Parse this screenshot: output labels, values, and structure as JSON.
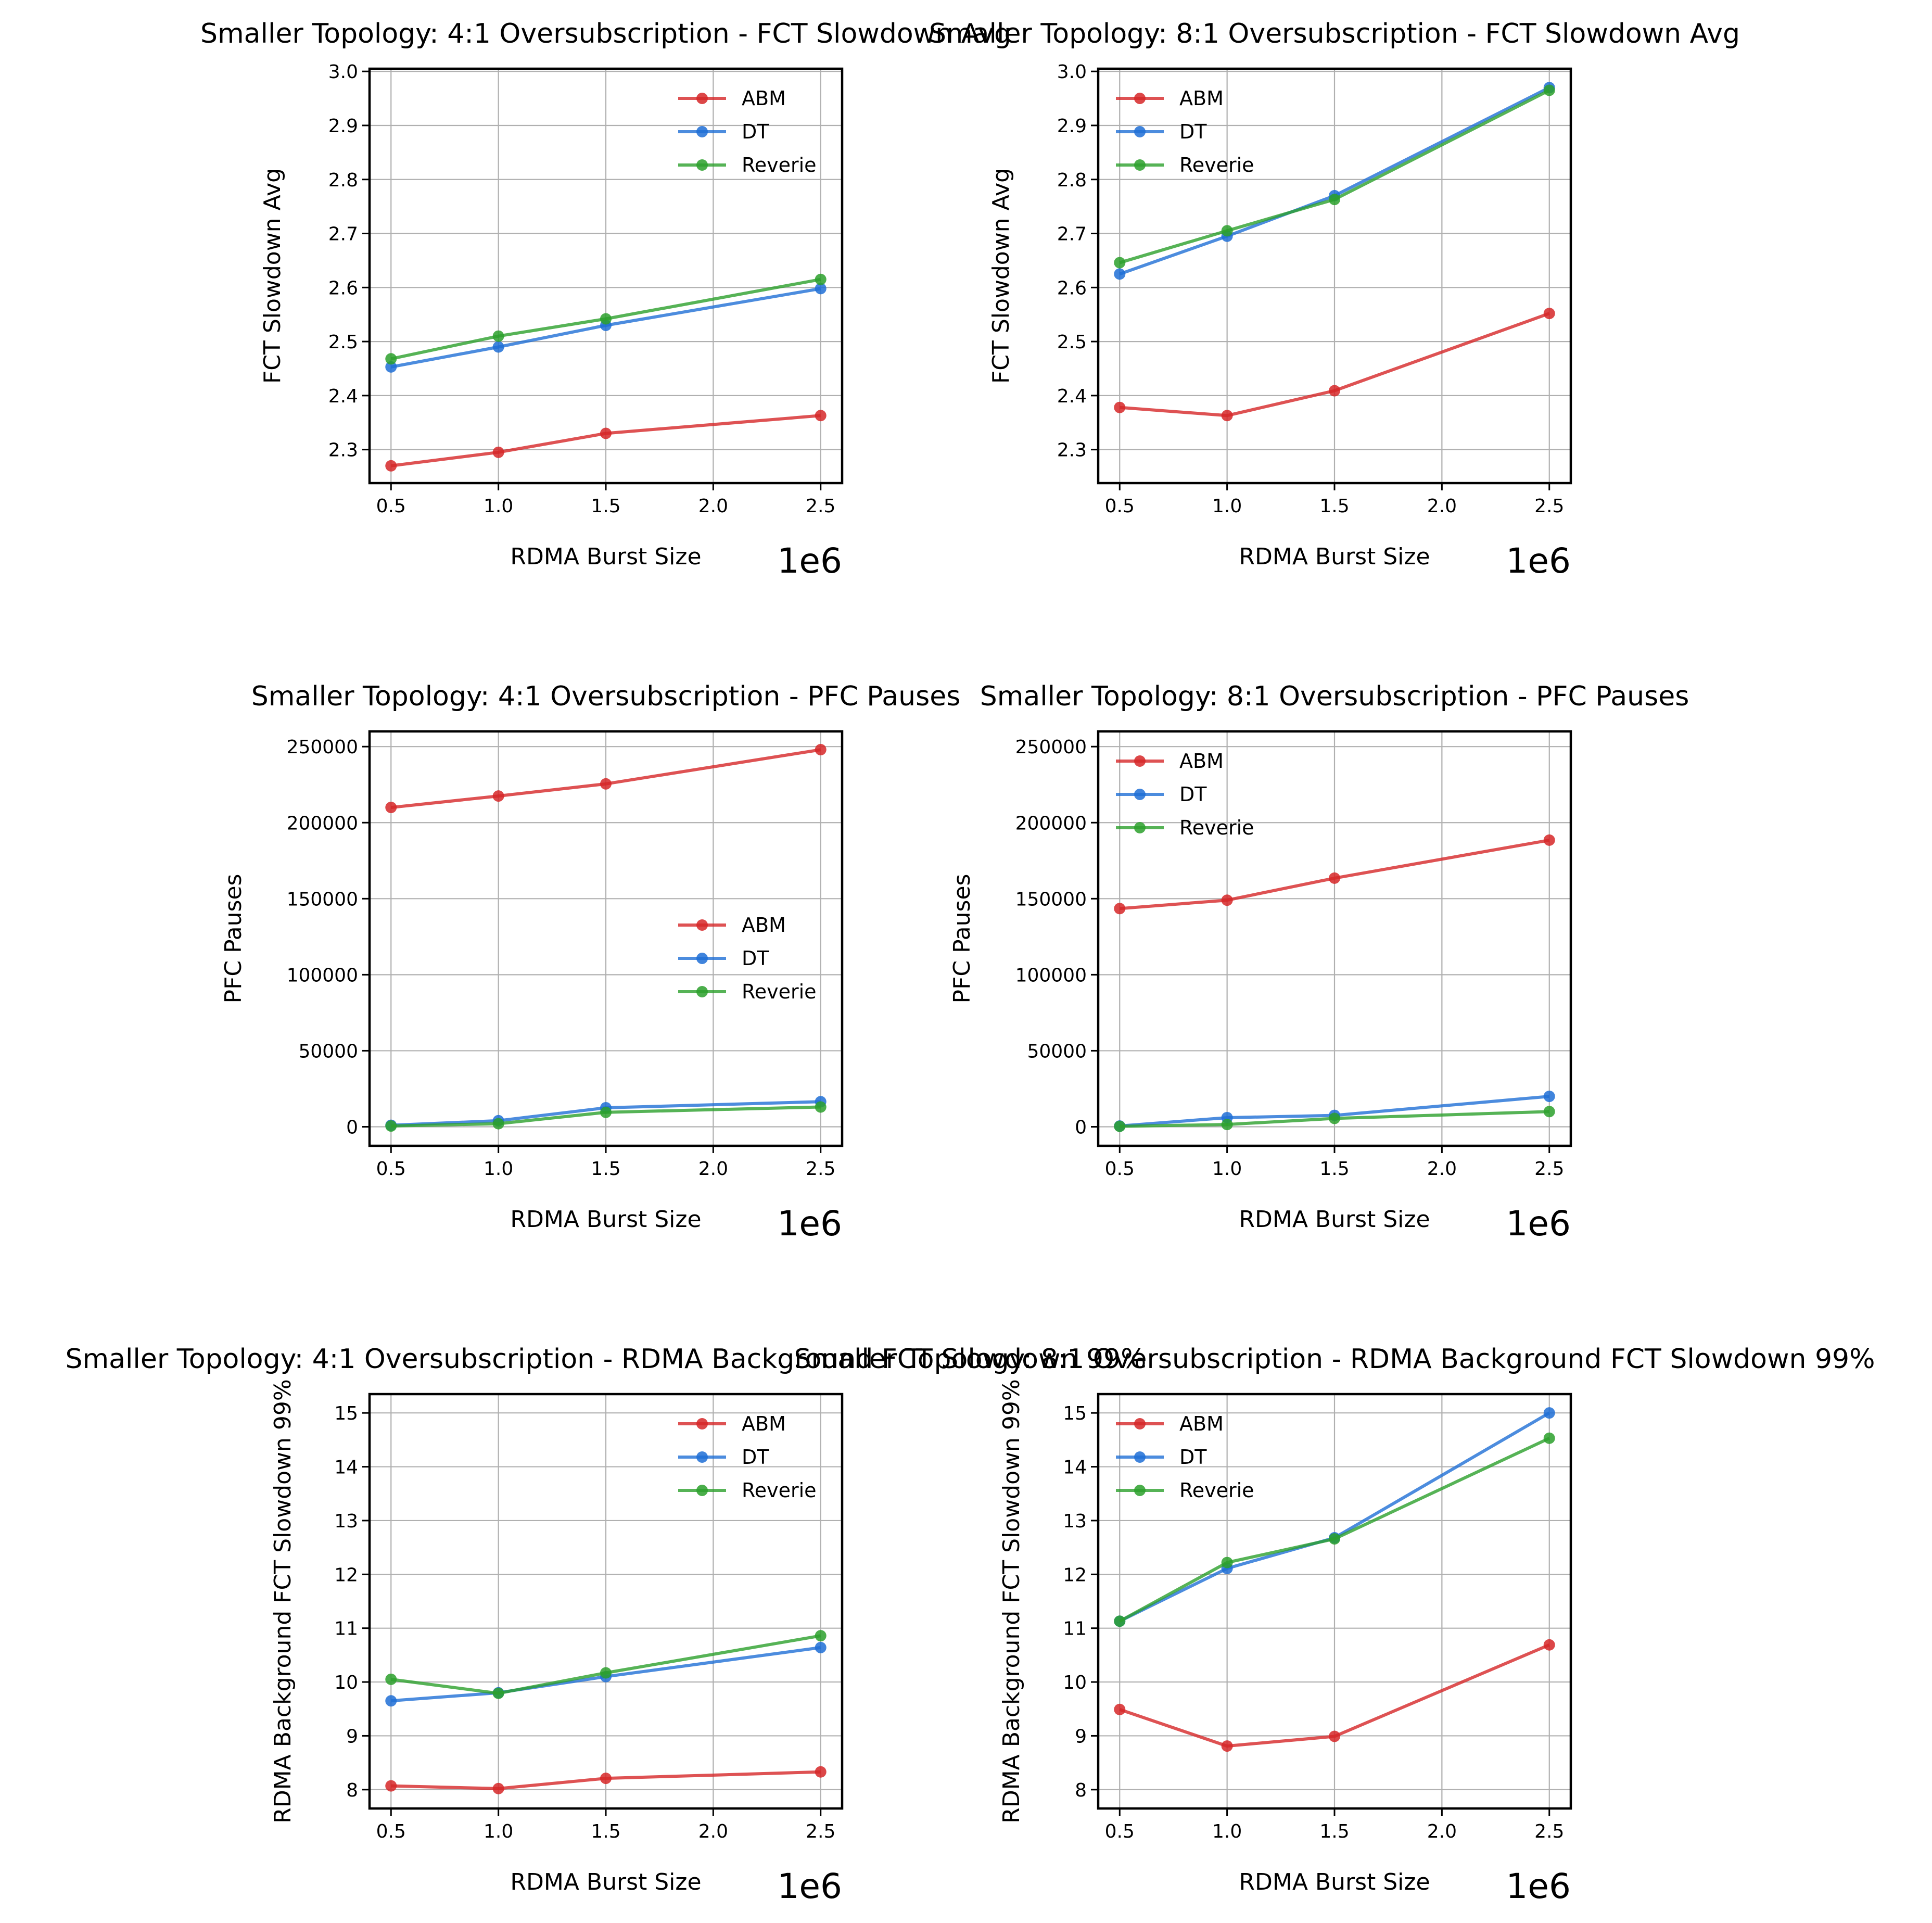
{
  "figure": {
    "series_colors": {
      "ABM": "#d62728",
      "DT": "#1f6fd6",
      "Reverie": "#2ca02c"
    },
    "x_offset_label": "1e6"
  },
  "chart_data": [
    {
      "type": "line",
      "title": "Smaller Topology: 4:1 Oversubscription - FCT Slowdown Avg",
      "xlabel": "RDMA Burst Size",
      "ylabel": "FCT Slowdown Avg",
      "x": [
        500000,
        1000000,
        1500000,
        2500000
      ],
      "xticks": [
        "0.5",
        "1.0",
        "1.5",
        "2.0",
        "2.5"
      ],
      "xlim": [
        400000,
        2600000
      ],
      "ylim": [
        2.238,
        3.005
      ],
      "yticks": [
        "2.3",
        "2.4",
        "2.5",
        "2.6",
        "2.7",
        "2.8",
        "2.9",
        "3.0"
      ],
      "grid": true,
      "legend_position": "upper right",
      "series": [
        {
          "name": "ABM",
          "values": [
            2.27,
            2.295,
            2.33,
            2.363
          ]
        },
        {
          "name": "DT",
          "values": [
            2.453,
            2.49,
            2.53,
            2.598
          ]
        },
        {
          "name": "Reverie",
          "values": [
            2.468,
            2.51,
            2.542,
            2.615
          ]
        }
      ]
    },
    {
      "type": "line",
      "title": "Smaller Topology: 8:1 Oversubscription - FCT Slowdown Avg",
      "xlabel": "RDMA Burst Size",
      "ylabel": "FCT Slowdown Avg",
      "x": [
        500000,
        1000000,
        1500000,
        2500000
      ],
      "xticks": [
        "0.5",
        "1.0",
        "1.5",
        "2.0",
        "2.5"
      ],
      "xlim": [
        400000,
        2600000
      ],
      "ylim": [
        2.238,
        3.005
      ],
      "yticks": [
        "2.3",
        "2.4",
        "2.5",
        "2.6",
        "2.7",
        "2.8",
        "2.9",
        "3.0"
      ],
      "grid": true,
      "legend_position": "upper left",
      "series": [
        {
          "name": "ABM",
          "values": [
            2.378,
            2.363,
            2.409,
            2.552
          ]
        },
        {
          "name": "DT",
          "values": [
            2.625,
            2.695,
            2.77,
            2.97
          ]
        },
        {
          "name": "Reverie",
          "values": [
            2.646,
            2.705,
            2.763,
            2.965
          ]
        }
      ]
    },
    {
      "type": "line",
      "title": "Smaller Topology: 4:1 Oversubscription - PFC Pauses",
      "xlabel": "RDMA Burst Size",
      "ylabel": "PFC Pauses",
      "x": [
        500000,
        1000000,
        1500000,
        2500000
      ],
      "xticks": [
        "0.5",
        "1.0",
        "1.5",
        "2.0",
        "2.5"
      ],
      "xlim": [
        400000,
        2600000
      ],
      "ylim": [
        -12500,
        260000
      ],
      "yticks": [
        "0",
        "50000",
        "100000",
        "150000",
        "200000",
        "250000"
      ],
      "grid": true,
      "legend_position": "center right",
      "series": [
        {
          "name": "ABM",
          "values": [
            210000,
            217500,
            225500,
            248000
          ]
        },
        {
          "name": "DT",
          "values": [
            1000,
            4000,
            12500,
            16500
          ]
        },
        {
          "name": "Reverie",
          "values": [
            500,
            2000,
            9500,
            13000
          ]
        }
      ]
    },
    {
      "type": "line",
      "title": "Smaller Topology: 8:1 Oversubscription - PFC Pauses",
      "xlabel": "RDMA Burst Size",
      "ylabel": "PFC Pauses",
      "x": [
        500000,
        1000000,
        1500000,
        2500000
      ],
      "xticks": [
        "0.5",
        "1.0",
        "1.5",
        "2.0",
        "2.5"
      ],
      "xlim": [
        400000,
        2600000
      ],
      "ylim": [
        -12500,
        260000
      ],
      "yticks": [
        "0",
        "50000",
        "100000",
        "150000",
        "200000",
        "250000"
      ],
      "grid": true,
      "legend_position": "upper left",
      "series": [
        {
          "name": "ABM",
          "values": [
            143500,
            149000,
            163500,
            188500
          ]
        },
        {
          "name": "DT",
          "values": [
            500,
            6000,
            7500,
            20000
          ]
        },
        {
          "name": "Reverie",
          "values": [
            300,
            1500,
            5500,
            10000
          ]
        }
      ]
    },
    {
      "type": "line",
      "title": "Smaller Topology: 4:1 Oversubscription - RDMA Background FCT Slowdown 99%",
      "xlabel": "RDMA Burst Size",
      "ylabel": "RDMA Background FCT Slowdown 99%",
      "x": [
        500000,
        1000000,
        1500000,
        2500000
      ],
      "xticks": [
        "0.5",
        "1.0",
        "1.5",
        "2.0",
        "2.5"
      ],
      "xlim": [
        400000,
        2600000
      ],
      "ylim": [
        7.65,
        15.35
      ],
      "yticks": [
        "8",
        "9",
        "10",
        "11",
        "12",
        "13",
        "14",
        "15"
      ],
      "grid": true,
      "legend_position": "upper right",
      "series": [
        {
          "name": "ABM",
          "values": [
            8.07,
            8.02,
            8.21,
            8.33
          ]
        },
        {
          "name": "DT",
          "values": [
            9.65,
            9.8,
            10.1,
            10.64
          ]
        },
        {
          "name": "Reverie",
          "values": [
            10.05,
            9.79,
            10.17,
            10.86
          ]
        }
      ]
    },
    {
      "type": "line",
      "title": "Smaller Topology: 8:1 Oversubscription - RDMA Background FCT Slowdown 99%",
      "xlabel": "RDMA Burst Size",
      "ylabel": "RDMA Background FCT Slowdown 99%",
      "x": [
        500000,
        1000000,
        1500000,
        2500000
      ],
      "xticks": [
        "0.5",
        "1.0",
        "1.5",
        "2.0",
        "2.5"
      ],
      "xlim": [
        400000,
        2600000
      ],
      "ylim": [
        7.65,
        15.35
      ],
      "yticks": [
        "8",
        "9",
        "10",
        "11",
        "12",
        "13",
        "14",
        "15"
      ],
      "grid": true,
      "legend_position": "upper left",
      "series": [
        {
          "name": "ABM",
          "values": [
            9.49,
            8.81,
            8.99,
            10.69
          ]
        },
        {
          "name": "DT",
          "values": [
            11.13,
            12.11,
            12.68,
            15.0
          ]
        },
        {
          "name": "Reverie",
          "values": [
            11.13,
            12.22,
            12.66,
            14.53
          ]
        }
      ]
    }
  ]
}
